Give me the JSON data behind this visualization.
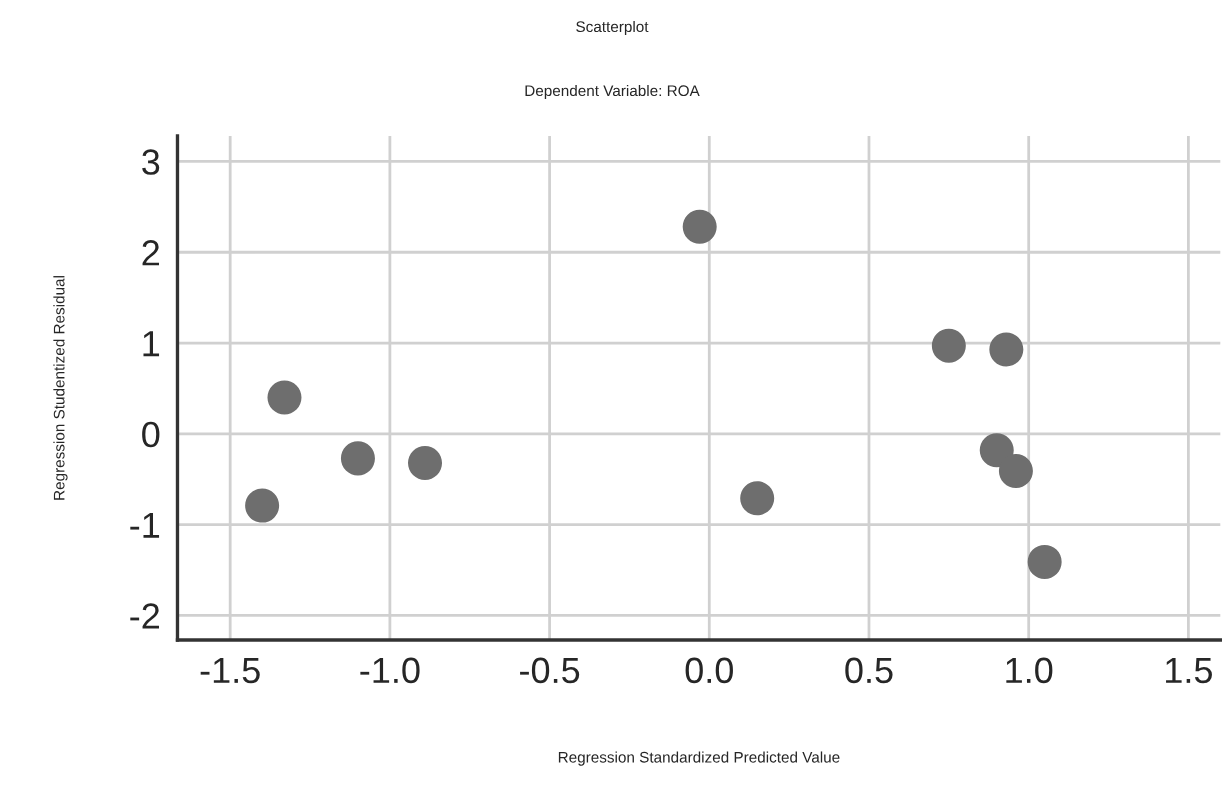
{
  "chart_data": {
    "type": "scatter",
    "title": "Scatterplot",
    "subtitle": "Dependent Variable: ROA",
    "xlabel": "Regression Standardized Predicted Value",
    "ylabel": "Regression Studentized Residual",
    "x": [
      -1.4,
      -1.33,
      -1.1,
      -0.89,
      -0.03,
      0.15,
      0.75,
      0.93,
      0.9,
      0.96,
      1.05
    ],
    "series": [
      {
        "color": "#6e6e6e",
        "values": [
          -0.79,
          0.4,
          -0.27,
          -0.32,
          2.28,
          -0.71,
          0.97,
          0.93,
          -0.18,
          -0.41,
          -1.41
        ]
      }
    ],
    "xlim": [
      -1.665,
      1.6
    ],
    "ylim": [
      -2.27,
      3.28
    ],
    "xticks": [
      -1.5,
      {
        "value": -1,
        "label": "-1.0"
      },
      -0.5,
      {
        "value": 0,
        "label": "0.0"
      },
      0.5,
      {
        "value": 1,
        "label": "1.0"
      },
      1.5
    ],
    "yticks": [
      -2,
      -1,
      0,
      1,
      2,
      3
    ],
    "grid": true,
    "marker": "circle"
  }
}
